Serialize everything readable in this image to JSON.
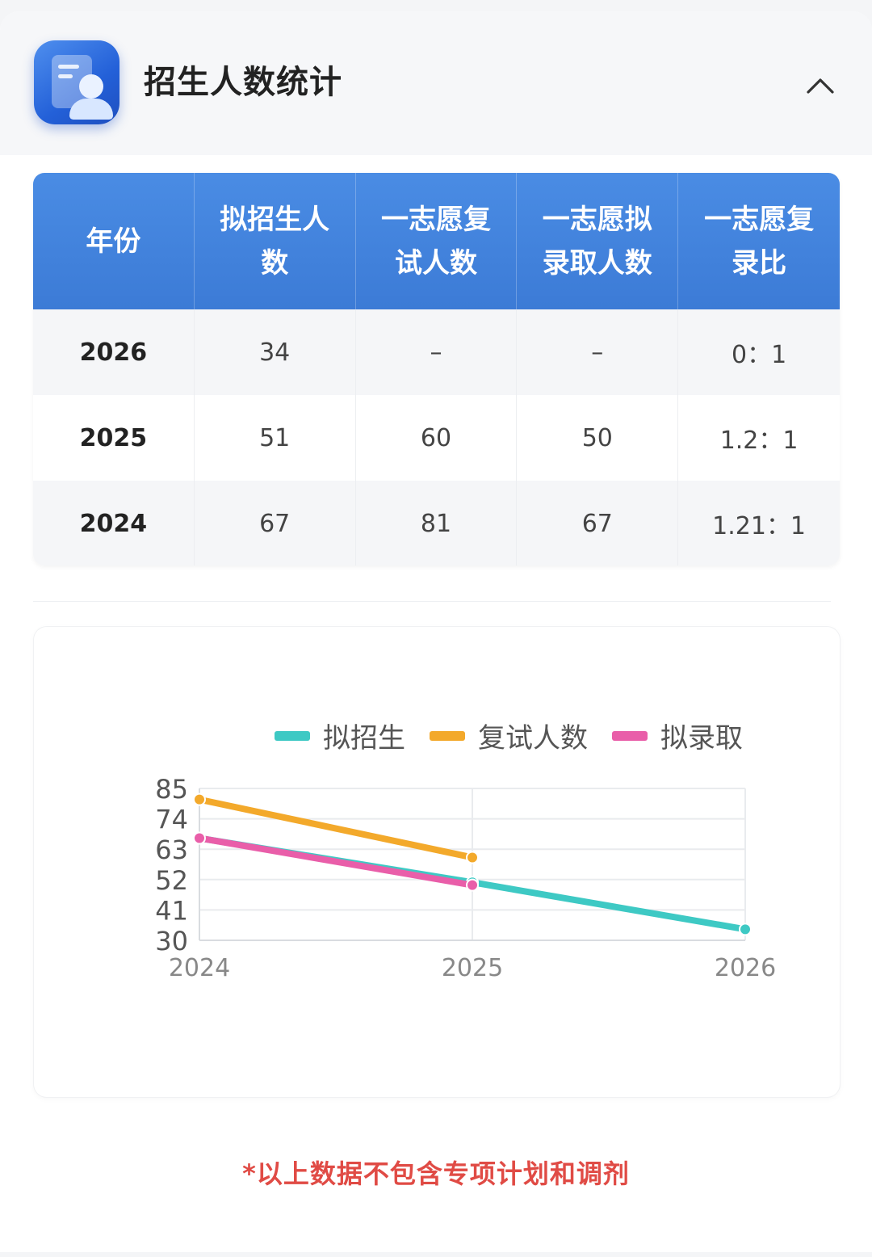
{
  "header": {
    "title": "招生人数统计",
    "icon": "profile-card-icon",
    "collapse_icon": "chevron-up-icon"
  },
  "table": {
    "headers": [
      "年份",
      "拟招生人数",
      "一志愿复试人数",
      "一志愿拟录取人数",
      "一志愿复录比"
    ],
    "rows": [
      [
        "2026",
        "34",
        "–",
        "–",
        "0：1"
      ],
      [
        "2025",
        "51",
        "60",
        "50",
        "1.2：1"
      ],
      [
        "2024",
        "67",
        "81",
        "67",
        "1.21：1"
      ]
    ]
  },
  "chart_data": {
    "type": "line",
    "x": [
      "2024",
      "2025",
      "2026"
    ],
    "series": [
      {
        "name": "拟招生",
        "color": "#3ec9c4",
        "values": [
          67,
          51,
          34
        ]
      },
      {
        "name": "复试人数",
        "color": "#f3a92b",
        "values": [
          81,
          60,
          null
        ]
      },
      {
        "name": "拟录取",
        "color": "#e95ea9",
        "values": [
          67,
          50,
          null
        ]
      }
    ],
    "yticks": [
      "85",
      "74",
      "63",
      "52",
      "41",
      "30"
    ],
    "ylim": [
      30,
      85
    ],
    "grid": true,
    "legend": "top"
  },
  "footnote": "*以上数据不包含专项计划和调剂"
}
